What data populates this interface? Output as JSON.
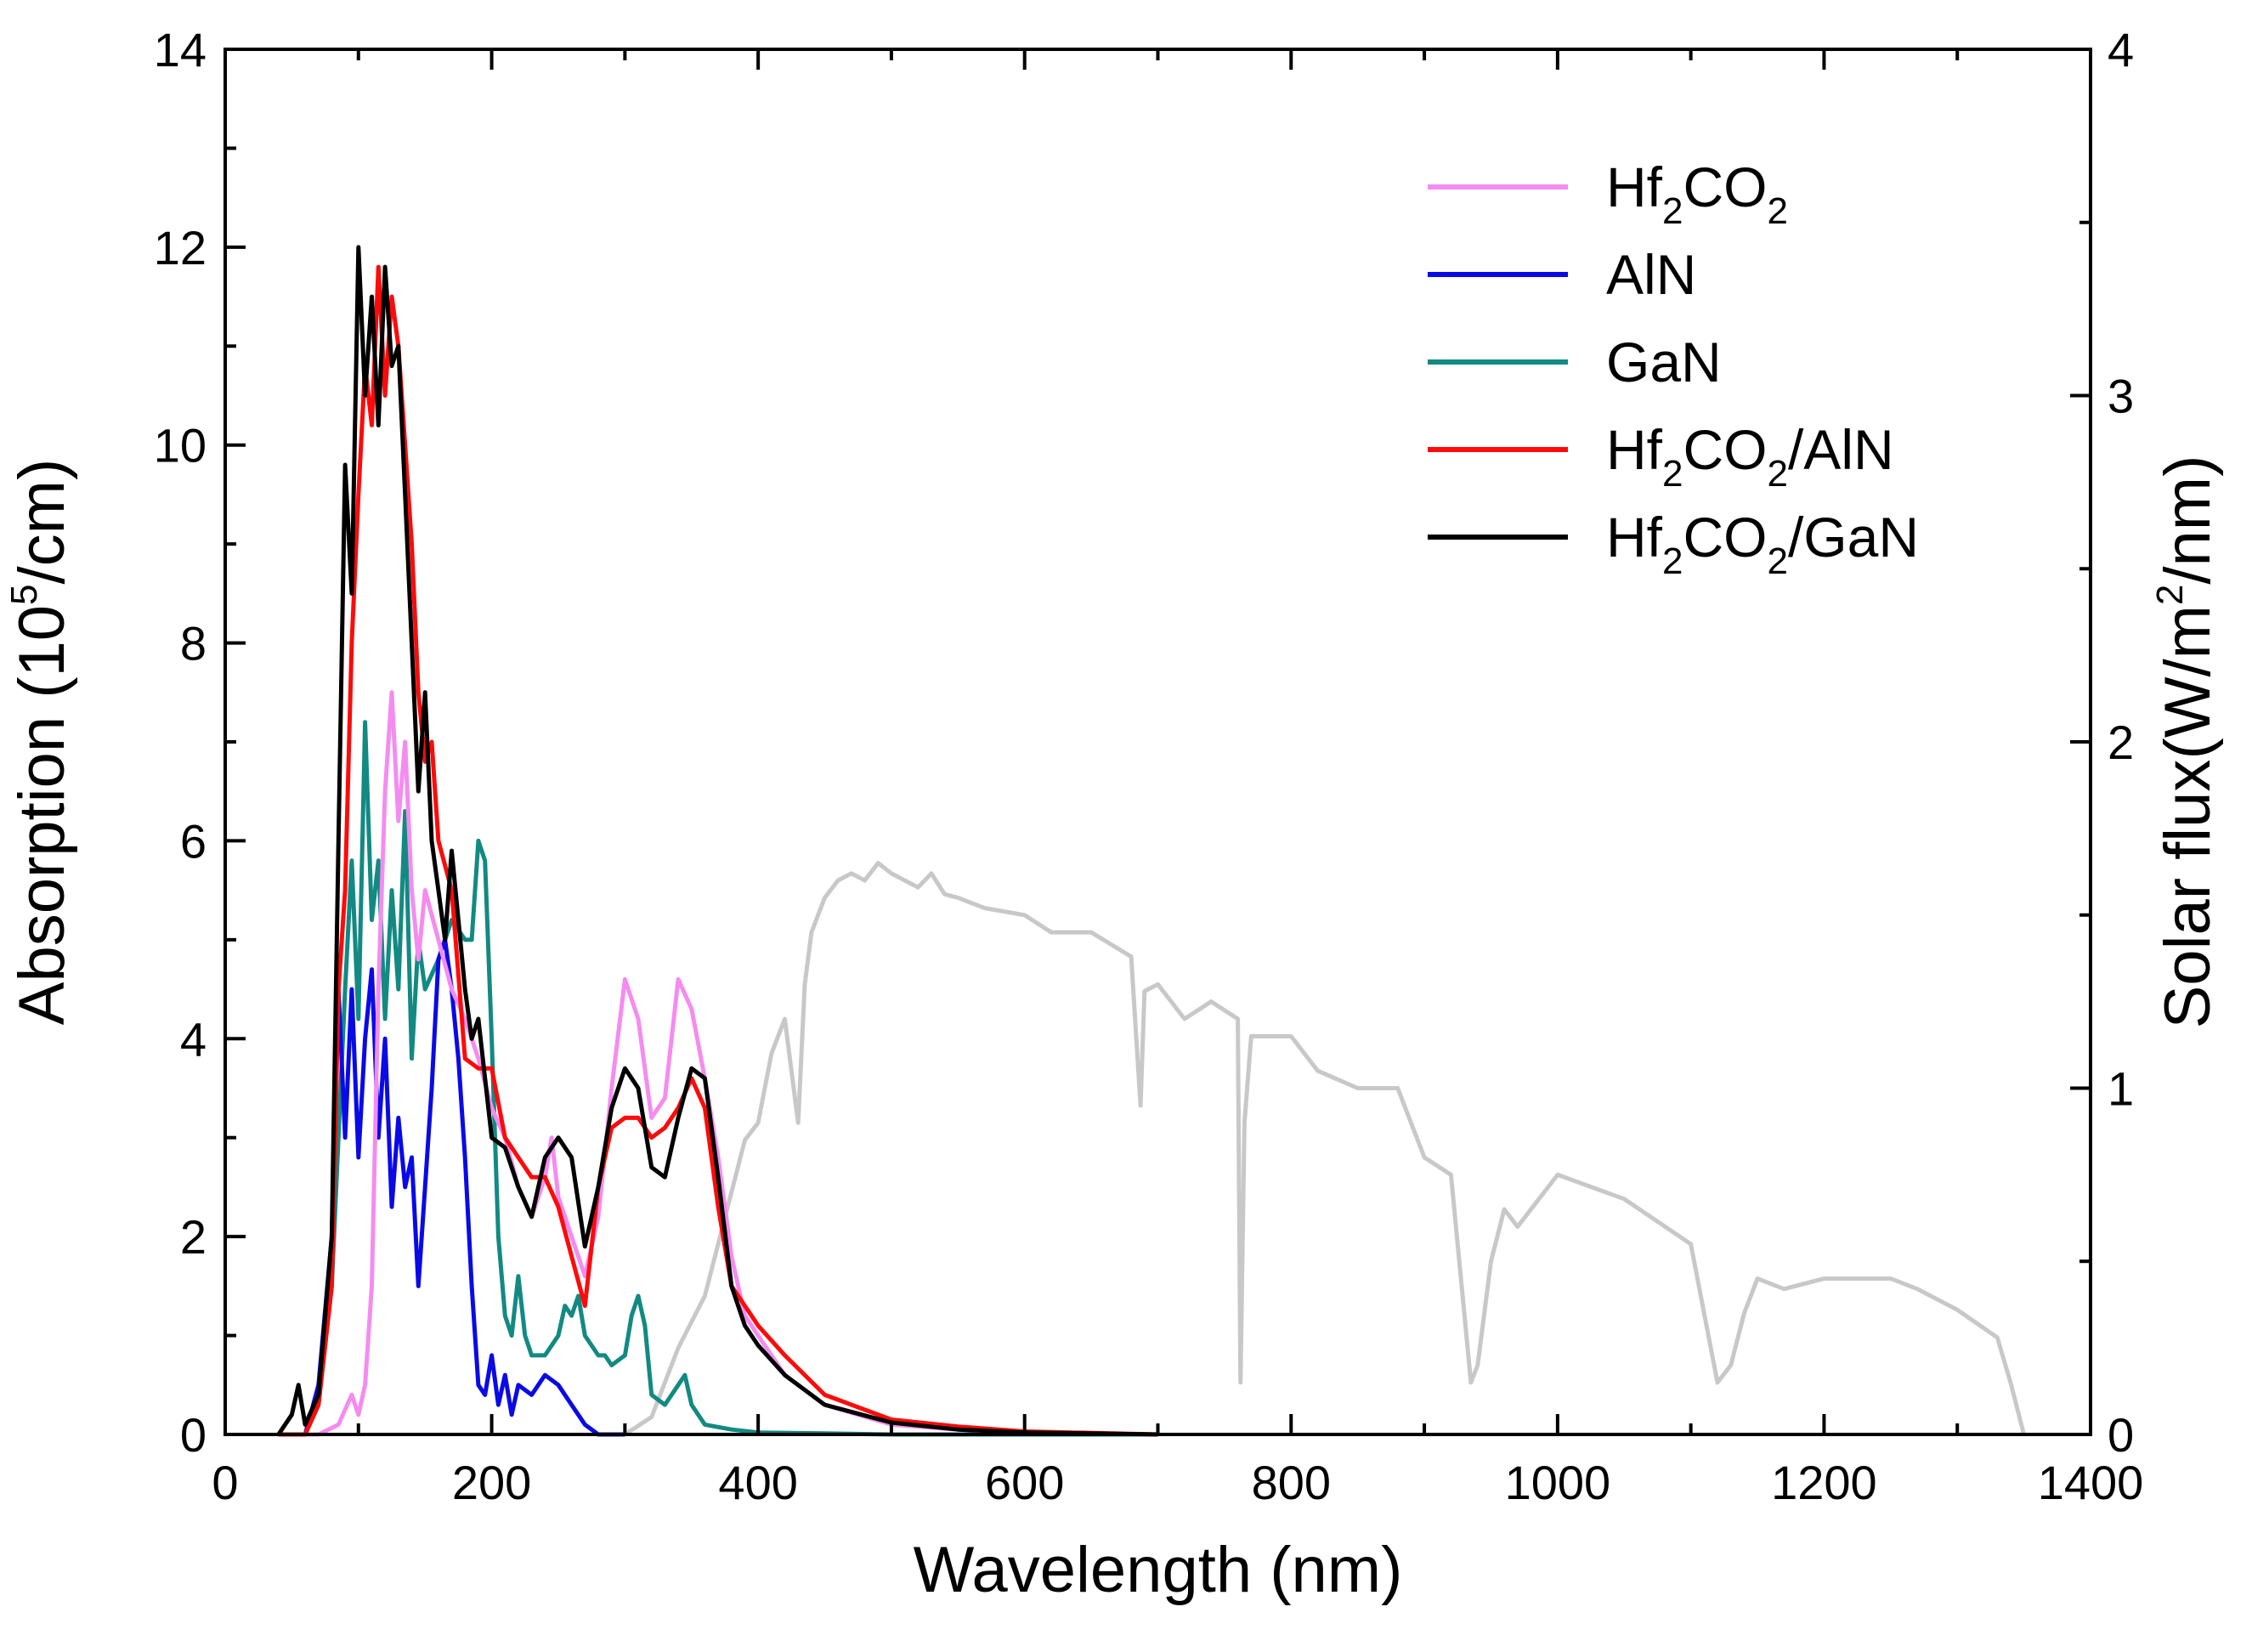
{
  "chart_data": {
    "type": "line",
    "xlabel": "Wavelength (nm)",
    "ylabel": {
      "main": "Absorption (10",
      "sup": "5",
      "tail": "/cm)"
    },
    "y2label": {
      "main": "Solar flux(W/m",
      "sup": "2",
      "tail": "/nm)"
    },
    "xlim": [
      0,
      1400
    ],
    "ylim": [
      0,
      14
    ],
    "y2lim": [
      0,
      4
    ],
    "xticks": [
      "0",
      "200",
      "400",
      "600",
      "800",
      "1000",
      "1200",
      "1400"
    ],
    "yticks": [
      "0",
      "2",
      "4",
      "6",
      "8",
      "10",
      "12",
      "14"
    ],
    "y2ticks": [
      "0",
      "1",
      "2",
      "3",
      "4"
    ],
    "legend_position": "top-right",
    "series": [
      {
        "key": "hf2co2",
        "name": {
          "a": "Hf",
          "s1": "2",
          "b": "CO",
          "s2": "2",
          "c": ""
        },
        "color": "#f48cf0",
        "axis": "left",
        "x": [
          40,
          70,
          85,
          95,
          100,
          105,
          110,
          115,
          120,
          125,
          130,
          135,
          140,
          145,
          150,
          160,
          170,
          180,
          190,
          200,
          210,
          220,
          230,
          240,
          245,
          250,
          260,
          270,
          280,
          290,
          300,
          310,
          320,
          330,
          340,
          350,
          360,
          370,
          380,
          390,
          400,
          420,
          450,
          500,
          550,
          600,
          700
        ],
        "y": [
          0,
          0,
          0.1,
          0.4,
          0.2,
          0.5,
          1.5,
          4.5,
          6.5,
          7.5,
          6.2,
          7.0,
          5.5,
          4.8,
          5.5,
          5.0,
          4.5,
          4.2,
          3.8,
          3.3,
          3.0,
          2.5,
          2.2,
          2.6,
          3.0,
          2.4,
          2.0,
          1.6,
          2.2,
          3.5,
          4.6,
          4.2,
          3.2,
          3.4,
          4.6,
          4.3,
          3.6,
          2.8,
          1.8,
          1.2,
          1.0,
          0.6,
          0.3,
          0.1,
          0.05,
          0.02,
          0
        ]
      },
      {
        "key": "aln",
        "name": {
          "a": "AlN",
          "s1": "",
          "b": "",
          "s2": "",
          "c": ""
        },
        "color": "#0a0ae6",
        "axis": "left",
        "x": [
          40,
          60,
          70,
          80,
          85,
          90,
          95,
          100,
          105,
          110,
          115,
          120,
          125,
          130,
          135,
          140,
          145,
          150,
          155,
          160,
          165,
          170,
          175,
          180,
          185,
          190,
          195,
          200,
          205,
          210,
          215,
          220,
          230,
          240,
          250,
          260,
          270,
          280,
          300
        ],
        "y": [
          0,
          0,
          0.5,
          2.0,
          4.5,
          3.0,
          4.5,
          2.8,
          4.0,
          4.7,
          3.0,
          4.0,
          2.3,
          3.2,
          2.5,
          2.8,
          1.5,
          2.5,
          3.5,
          4.8,
          5.0,
          4.5,
          3.8,
          2.8,
          1.5,
          0.5,
          0.4,
          0.8,
          0.3,
          0.6,
          0.2,
          0.5,
          0.4,
          0.6,
          0.5,
          0.3,
          0.1,
          0,
          0
        ]
      },
      {
        "key": "gan",
        "name": {
          "a": "GaN",
          "s1": "",
          "b": "",
          "s2": "",
          "c": ""
        },
        "color": "#128a82",
        "axis": "left",
        "x": [
          40,
          60,
          70,
          80,
          90,
          95,
          100,
          105,
          110,
          115,
          120,
          125,
          130,
          135,
          140,
          145,
          150,
          160,
          170,
          180,
          185,
          190,
          195,
          200,
          205,
          210,
          215,
          220,
          225,
          230,
          240,
          250,
          255,
          260,
          265,
          270,
          280,
          285,
          290,
          300,
          305,
          310,
          315,
          320,
          330,
          340,
          345,
          350,
          360,
          380,
          400,
          450,
          500,
          600,
          700
        ],
        "y": [
          0,
          0,
          0.3,
          1.5,
          4.5,
          5.8,
          4.2,
          7.2,
          5.2,
          5.8,
          4.2,
          5.5,
          4.5,
          6.3,
          3.8,
          5.0,
          4.5,
          4.8,
          5.2,
          5.0,
          5.0,
          6.0,
          5.8,
          4.0,
          2.0,
          1.2,
          1.0,
          1.6,
          1.0,
          0.8,
          0.8,
          1.0,
          1.3,
          1.2,
          1.4,
          1.0,
          0.8,
          0.8,
          0.7,
          0.8,
          1.2,
          1.4,
          1.1,
          0.4,
          0.3,
          0.5,
          0.6,
          0.3,
          0.1,
          0.05,
          0.02,
          0.01,
          0,
          0,
          0
        ]
      },
      {
        "key": "hf2co2_aln",
        "name": {
          "a": "Hf",
          "s1": "2",
          "b": "CO",
          "s2": "2",
          "c": "/AlN"
        },
        "color": "#ff0a0a",
        "axis": "left",
        "x": [
          40,
          60,
          70,
          80,
          85,
          90,
          95,
          100,
          105,
          110,
          115,
          120,
          125,
          130,
          135,
          140,
          145,
          150,
          155,
          160,
          170,
          180,
          190,
          200,
          210,
          220,
          230,
          240,
          250,
          260,
          270,
          280,
          290,
          300,
          310,
          320,
          330,
          340,
          350,
          360,
          370,
          380,
          390,
          400,
          420,
          450,
          500,
          550,
          600,
          700
        ],
        "y": [
          0,
          0,
          0.3,
          1.5,
          4.5,
          5.5,
          8.0,
          9.5,
          10.8,
          10.2,
          11.8,
          10.5,
          11.5,
          11.0,
          10.0,
          9.0,
          7.5,
          6.8,
          7.0,
          6.0,
          5.5,
          3.8,
          3.7,
          3.7,
          3.0,
          2.8,
          2.6,
          2.6,
          2.3,
          1.8,
          1.3,
          2.5,
          3.1,
          3.2,
          3.2,
          3.0,
          3.1,
          3.3,
          3.6,
          3.3,
          2.3,
          1.5,
          1.3,
          1.1,
          0.8,
          0.4,
          0.15,
          0.08,
          0.03,
          0
        ]
      },
      {
        "key": "hf2co2_gan",
        "name": {
          "a": "Hf",
          "s1": "2",
          "b": "CO",
          "s2": "2",
          "c": "/GaN"
        },
        "color": "#000000",
        "axis": "left",
        "x": [
          40,
          50,
          55,
          60,
          70,
          80,
          85,
          90,
          95,
          100,
          105,
          110,
          115,
          120,
          125,
          130,
          135,
          140,
          145,
          150,
          155,
          160,
          165,
          170,
          175,
          180,
          185,
          190,
          200,
          210,
          220,
          230,
          240,
          250,
          260,
          270,
          280,
          290,
          300,
          310,
          320,
          330,
          340,
          350,
          360,
          370,
          380,
          390,
          400,
          420,
          450,
          500,
          550,
          600,
          700
        ],
        "y": [
          0,
          0.2,
          0.5,
          0.1,
          0.4,
          2.0,
          6.0,
          9.8,
          8.5,
          12.0,
          10.5,
          11.5,
          10.2,
          11.8,
          10.8,
          11.0,
          9.5,
          8.0,
          6.5,
          7.5,
          6.0,
          5.5,
          5.0,
          5.9,
          5.2,
          4.5,
          4.0,
          4.2,
          3.0,
          2.9,
          2.5,
          2.2,
          2.8,
          3.0,
          2.8,
          1.9,
          2.5,
          3.3,
          3.7,
          3.5,
          2.7,
          2.6,
          3.2,
          3.7,
          3.6,
          2.6,
          1.5,
          1.1,
          0.9,
          0.6,
          0.3,
          0.12,
          0.05,
          0.02,
          0
        ]
      },
      {
        "key": "solar",
        "name": {
          "a": "Solar flux",
          "s1": "",
          "b": "",
          "s2": "",
          "c": ""
        },
        "color": "#c8c8c8",
        "axis": "right",
        "x": [
          300,
          320,
          340,
          360,
          370,
          380,
          390,
          400,
          410,
          420,
          430,
          435,
          440,
          450,
          460,
          470,
          480,
          490,
          500,
          510,
          520,
          530,
          540,
          550,
          570,
          600,
          620,
          650,
          680,
          687,
          690,
          700,
          720,
          740,
          760,
          762,
          765,
          770,
          800,
          820,
          850,
          880,
          900,
          920,
          935,
          940,
          950,
          960,
          970,
          1000,
          1050,
          1100,
          1120,
          1130,
          1140,
          1150,
          1170,
          1200,
          1250,
          1270,
          1300,
          1330,
          1340,
          1350
        ],
        "y": [
          0,
          0.05,
          0.25,
          0.4,
          0.55,
          0.7,
          0.85,
          0.9,
          1.1,
          1.2,
          0.9,
          1.3,
          1.45,
          1.55,
          1.6,
          1.62,
          1.6,
          1.65,
          1.62,
          1.6,
          1.58,
          1.62,
          1.56,
          1.55,
          1.52,
          1.5,
          1.45,
          1.45,
          1.38,
          0.95,
          1.28,
          1.3,
          1.2,
          1.25,
          1.2,
          0.15,
          0.9,
          1.15,
          1.15,
          1.05,
          1.0,
          1.0,
          0.8,
          0.75,
          0.15,
          0.2,
          0.5,
          0.65,
          0.6,
          0.75,
          0.68,
          0.55,
          0.15,
          0.2,
          0.35,
          0.45,
          0.42,
          0.45,
          0.45,
          0.42,
          0.36,
          0.28,
          0.15,
          0
        ]
      }
    ],
    "legend_order": [
      "hf2co2",
      "aln",
      "gan",
      "hf2co2_aln",
      "hf2co2_gan"
    ]
  }
}
